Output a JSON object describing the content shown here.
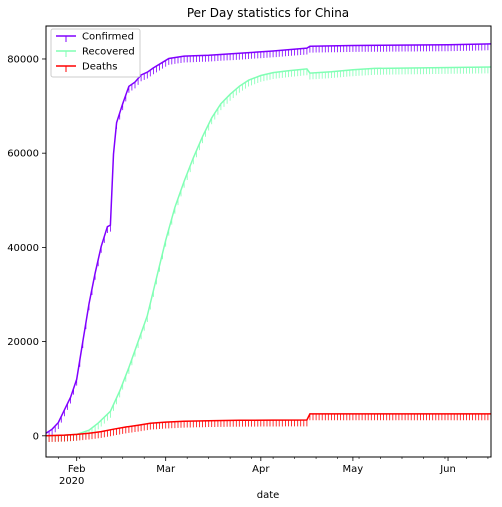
{
  "chart_data": {
    "type": "line",
    "title": "Per Day statistics for China",
    "xlabel": "date",
    "ylabel": "",
    "x_start": "2020-01-22",
    "x_end": "2020-06-15",
    "ylim": [
      -4500,
      87000
    ],
    "y_ticks": [
      0,
      20000,
      40000,
      60000,
      80000
    ],
    "x_ticks": [
      {
        "date": "2020-02-01",
        "label": "Feb",
        "sublabel": "2020"
      },
      {
        "date": "2020-03-01",
        "label": "Mar",
        "sublabel": ""
      },
      {
        "date": "2020-04-01",
        "label": "Apr",
        "sublabel": ""
      },
      {
        "date": "2020-05-01",
        "label": "May",
        "sublabel": ""
      },
      {
        "date": "2020-06-01",
        "label": "Jun",
        "sublabel": ""
      }
    ],
    "grid": false,
    "legend": "top-left",
    "series": [
      {
        "name": "Confirmed",
        "color": "#8000ff",
        "points": [
          [
            "2020-01-22",
            548
          ],
          [
            "2020-01-24",
            1400
          ],
          [
            "2020-01-26",
            2800
          ],
          [
            "2020-01-28",
            5500
          ],
          [
            "2020-01-30",
            8200
          ],
          [
            "2020-02-01",
            12000
          ],
          [
            "2020-02-03",
            20000
          ],
          [
            "2020-02-05",
            28000
          ],
          [
            "2020-02-07",
            34500
          ],
          [
            "2020-02-09",
            40200
          ],
          [
            "2020-02-11",
            44400
          ],
          [
            "2020-02-12",
            44700
          ],
          [
            "2020-02-13",
            59800
          ],
          [
            "2020-02-14",
            66500
          ],
          [
            "2020-02-16",
            70500
          ],
          [
            "2020-02-18",
            74200
          ],
          [
            "2020-02-20",
            75100
          ],
          [
            "2020-02-22",
            76600
          ],
          [
            "2020-02-24",
            77200
          ],
          [
            "2020-02-26",
            78100
          ],
          [
            "2020-02-29",
            79300
          ],
          [
            "2020-03-02",
            80100
          ],
          [
            "2020-03-07",
            80600
          ],
          [
            "2020-03-15",
            80800
          ],
          [
            "2020-03-25",
            81200
          ],
          [
            "2020-04-05",
            81700
          ],
          [
            "2020-04-16",
            82300
          ],
          [
            "2020-04-17",
            82700
          ],
          [
            "2020-05-01",
            82850
          ],
          [
            "2020-06-01",
            83000
          ],
          [
            "2020-06-15",
            83200
          ]
        ]
      },
      {
        "name": "Recovered",
        "color": "#80ffb4",
        "points": [
          [
            "2020-01-22",
            28
          ],
          [
            "2020-01-28",
            100
          ],
          [
            "2020-02-01",
            300
          ],
          [
            "2020-02-05",
            1200
          ],
          [
            "2020-02-08",
            2700
          ],
          [
            "2020-02-12",
            5200
          ],
          [
            "2020-02-15",
            9500
          ],
          [
            "2020-02-18",
            14500
          ],
          [
            "2020-02-21",
            20000
          ],
          [
            "2020-02-24",
            25500
          ],
          [
            "2020-02-27",
            33500
          ],
          [
            "2020-03-01",
            41500
          ],
          [
            "2020-03-04",
            48500
          ],
          [
            "2020-03-07",
            54000
          ],
          [
            "2020-03-10",
            59000
          ],
          [
            "2020-03-13",
            63500
          ],
          [
            "2020-03-16",
            67500
          ],
          [
            "2020-03-19",
            70500
          ],
          [
            "2020-03-22",
            72500
          ],
          [
            "2020-03-25",
            74200
          ],
          [
            "2020-03-28",
            75500
          ],
          [
            "2020-04-01",
            76500
          ],
          [
            "2020-04-05",
            77100
          ],
          [
            "2020-04-10",
            77500
          ],
          [
            "2020-04-16",
            77900
          ],
          [
            "2020-04-17",
            77000
          ],
          [
            "2020-04-24",
            77300
          ],
          [
            "2020-05-01",
            77700
          ],
          [
            "2020-05-08",
            78000
          ],
          [
            "2020-06-15",
            78300
          ]
        ]
      },
      {
        "name": "Deaths",
        "color": "#ff0000",
        "points": [
          [
            "2020-01-22",
            17
          ],
          [
            "2020-01-28",
            150
          ],
          [
            "2020-02-01",
            300
          ],
          [
            "2020-02-05",
            560
          ],
          [
            "2020-02-09",
            900
          ],
          [
            "2020-02-13",
            1400
          ],
          [
            "2020-02-17",
            1870
          ],
          [
            "2020-02-21",
            2250
          ],
          [
            "2020-02-25",
            2660
          ],
          [
            "2020-03-01",
            2900
          ],
          [
            "2020-03-07",
            3090
          ],
          [
            "2020-03-15",
            3210
          ],
          [
            "2020-03-25",
            3290
          ],
          [
            "2020-04-05",
            3330
          ],
          [
            "2020-04-16",
            3350
          ],
          [
            "2020-04-17",
            4640
          ],
          [
            "2020-05-01",
            4640
          ],
          [
            "2020-06-15",
            4640
          ]
        ]
      }
    ]
  }
}
